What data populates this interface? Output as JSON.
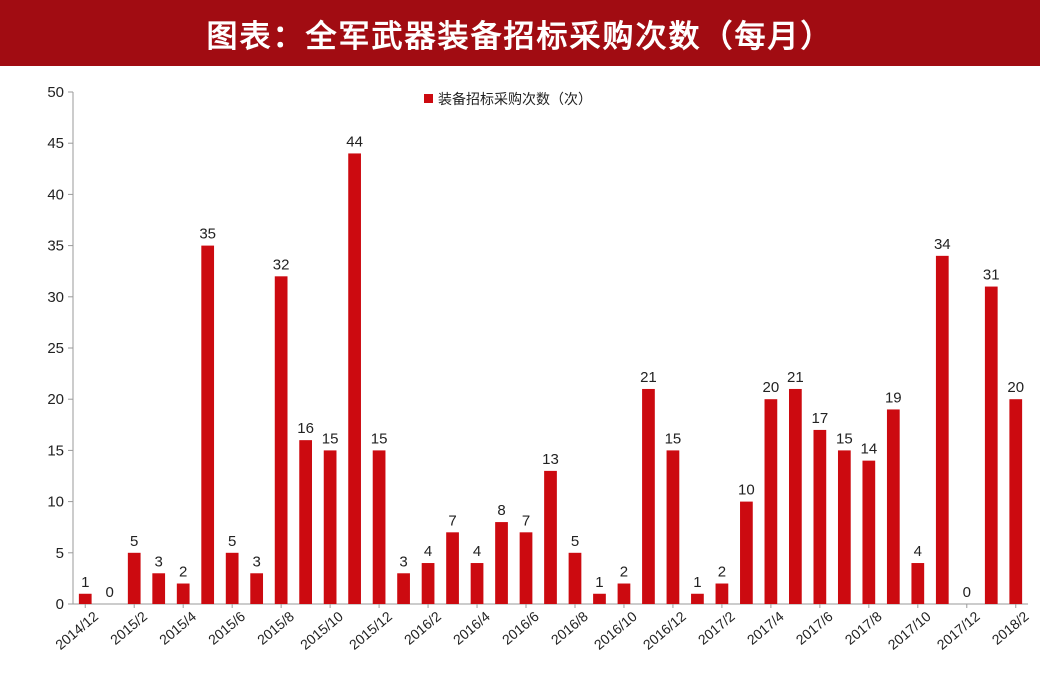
{
  "title": "图表：全军武器装备招标采购次数（每月）",
  "colors": {
    "title_bg": "#a10c12",
    "bar": "#cc0a10",
    "axis": "#9a9a9a"
  },
  "chart_data": {
    "type": "bar",
    "legend": "装备招标采购次数（次）",
    "legend_position": "top-center",
    "grid": false,
    "ylim": [
      0,
      50
    ],
    "yticks": [
      0,
      5,
      10,
      15,
      20,
      25,
      30,
      35,
      40,
      45,
      50
    ],
    "categories": [
      "2014/12",
      "2015/1",
      "2015/2",
      "2015/3",
      "2015/4",
      "2015/5",
      "2015/6",
      "2015/7",
      "2015/8",
      "2015/9",
      "2015/10",
      "2015/11",
      "2015/12",
      "2016/1",
      "2016/2",
      "2016/3",
      "2016/4",
      "2016/5",
      "2016/6",
      "2016/7",
      "2016/8",
      "2016/9",
      "2016/10",
      "2016/11",
      "2016/12",
      "2017/1",
      "2017/2",
      "2017/3",
      "2017/4",
      "2017/5",
      "2017/6",
      "2017/7",
      "2017/8",
      "2017/9",
      "2017/10",
      "2017/11",
      "2017/12",
      "2018/1",
      "2018/2"
    ],
    "xtick_labels": [
      "2014/12",
      "2015/2",
      "2015/4",
      "2015/6",
      "2015/8",
      "2015/10",
      "2015/12",
      "2016/2",
      "2016/4",
      "2016/6",
      "2016/8",
      "2016/10",
      "2016/12",
      "2017/2",
      "2017/4",
      "2017/6",
      "2017/8",
      "2017/10",
      "2017/12",
      "2018/2"
    ],
    "values": [
      1,
      0,
      5,
      3,
      2,
      35,
      5,
      3,
      32,
      16,
      15,
      44,
      15,
      3,
      4,
      7,
      4,
      8,
      7,
      13,
      5,
      1,
      2,
      21,
      15,
      1,
      2,
      10,
      20,
      21,
      17,
      15,
      14,
      19,
      4,
      34,
      0,
      31,
      20
    ]
  }
}
